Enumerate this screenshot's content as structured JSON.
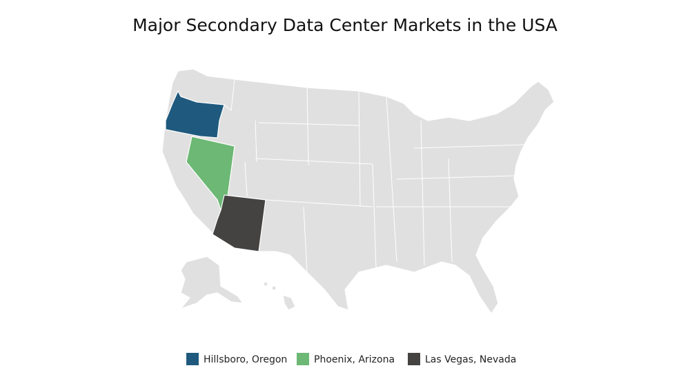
{
  "title": "Major Secondary Data Center Markets in the USA",
  "legend": [
    {
      "label": "Hillsboro, Oregon",
      "color": "#1f5a7e"
    },
    {
      "label": "Phoenix, Arizona",
      "color": "#6cb874"
    },
    {
      "label": "Las Vegas, Nevada",
      "color": "#454342"
    }
  ]
}
